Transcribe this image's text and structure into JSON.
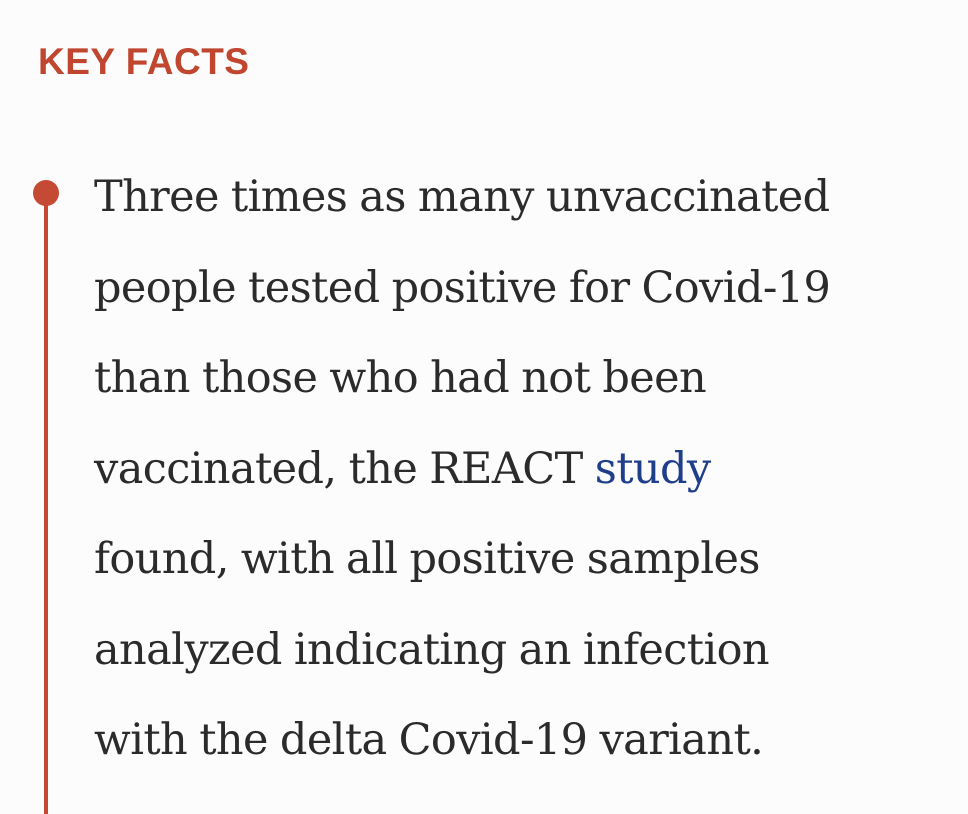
{
  "section": {
    "heading": "KEY FACTS"
  },
  "fact": {
    "lines": [
      "Three times as many unvaccinated",
      "people tested positive for Covid-19",
      "than those who had not been",
      "vaccinated, the REACT ",
      "found, with all positive samples",
      "analyzed indicating an infection",
      "with the delta Covid-19 variant."
    ],
    "link_text": "study"
  },
  "colors": {
    "accent": "#c0462f",
    "link": "#1f3f8a",
    "text": "#2b2b2b",
    "background": "#fcfcfc"
  }
}
